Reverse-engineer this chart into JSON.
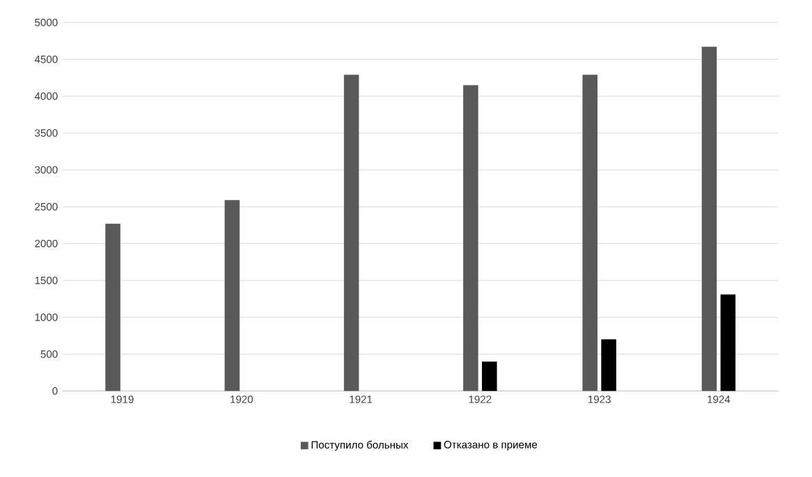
{
  "chart_data": {
    "type": "bar",
    "categories": [
      "1919",
      "1920",
      "1921",
      "1922",
      "1923",
      "1924"
    ],
    "series": [
      {
        "name": "Поступило больных",
        "color": "#595959",
        "values": [
          2270,
          2590,
          4290,
          4150,
          4290,
          4670
        ]
      },
      {
        "name": "Отказано в приеме",
        "color": "#000000",
        "values": [
          null,
          null,
          null,
          400,
          700,
          1310
        ]
      }
    ],
    "ylim": [
      0,
      5000
    ],
    "yticks": [
      0,
      500,
      1000,
      1500,
      2000,
      2500,
      3000,
      3500,
      4000,
      4500,
      5000
    ],
    "grid": "y",
    "legend": "bottom"
  }
}
